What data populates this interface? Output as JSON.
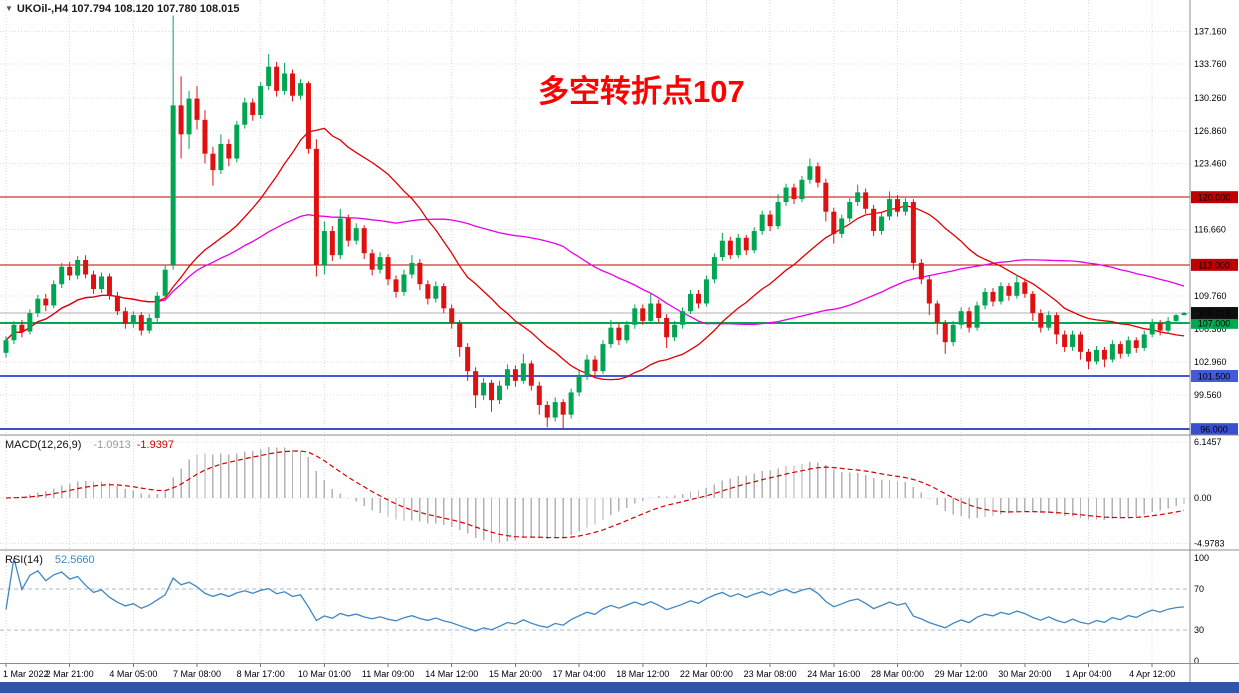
{
  "header": {
    "collapse_glyph": "▼",
    "symbol_title": "UKOil-,H4 107.794 108.120 107.780 108.015"
  },
  "annotation": {
    "text": "多空转折点107"
  },
  "colors": {
    "background": "#ffffff",
    "up_candle": "#00a551",
    "down_candle": "#e01010",
    "ma_fast": "#e00000",
    "ma_slow": "#e800e8",
    "grid": "#dcdcdc",
    "separator": "#8c8c8c",
    "current_price_line": "#b0b0b0",
    "macd_hist": "#b2b2b2",
    "macd_signal": "#d40000",
    "macd_value_color": "#9a9a9a",
    "rsi_line": "#3f87c4",
    "rsi_level": "#aab9d9",
    "annotation": "#ff0000",
    "taskbar": "#3056a8",
    "current_badge": "#101010"
  },
  "overlays": {
    "hlines": [
      {
        "price": 120.0,
        "label": "120.000",
        "color": "#c00000",
        "width": 1
      },
      {
        "price": 113.0,
        "label": "113.000",
        "color": "#c00000",
        "width": 1
      },
      {
        "price": 107.0,
        "label": "107.000",
        "color": "#00a84f",
        "width": 2
      },
      {
        "price": 101.5,
        "label": "101.500",
        "color": "#4459d8",
        "width": 2
      },
      {
        "price": 96.0,
        "label": "96.000",
        "color": "#3a4fd0",
        "width": 2
      }
    ],
    "current_price": {
      "value": 108.015,
      "label": "108.015"
    }
  },
  "chart_data": {
    "type": "candlestick",
    "symbol": "UKOil-",
    "timeframe": "H4",
    "ylim": [
      95.5,
      140.4
    ],
    "price_ticks": [
      {
        "v": 137.16,
        "label": "137.160"
      },
      {
        "v": 133.76,
        "label": "133.760"
      },
      {
        "v": 130.26,
        "label": "130.260"
      },
      {
        "v": 126.86,
        "label": "126.860"
      },
      {
        "v": 123.46,
        "label": "123.460"
      },
      {
        "v": 116.66,
        "label": "116.660"
      },
      {
        "v": 109.76,
        "label": "109.760"
      },
      {
        "v": 106.36,
        "label": "106.360"
      },
      {
        "v": 102.96,
        "label": "102.960"
      },
      {
        "v": 99.56,
        "label": "99.560"
      }
    ],
    "x_labels": [
      {
        "bar": 0,
        "label": "1 Mar 2022"
      },
      {
        "bar": 8,
        "label": "2 Mar 21:00"
      },
      {
        "bar": 16,
        "label": "4 Mar 05:00"
      },
      {
        "bar": 24,
        "label": "7 Mar 08:00"
      },
      {
        "bar": 32,
        "label": "8 Mar 17:00"
      },
      {
        "bar": 40,
        "label": "10 Mar 01:00"
      },
      {
        "bar": 48,
        "label": "11 Mar 09:00"
      },
      {
        "bar": 56,
        "label": "14 Mar 12:00"
      },
      {
        "bar": 64,
        "label": "15 Mar 20:00"
      },
      {
        "bar": 72,
        "label": "17 Mar 04:00"
      },
      {
        "bar": 80,
        "label": "18 Mar 12:00"
      },
      {
        "bar": 88,
        "label": "22 Mar 00:00"
      },
      {
        "bar": 96,
        "label": "23 Mar 08:00"
      },
      {
        "bar": 104,
        "label": "24 Mar 16:00"
      },
      {
        "bar": 112,
        "label": "28 Mar 00:00"
      },
      {
        "bar": 120,
        "label": "29 Mar 12:00"
      },
      {
        "bar": 128,
        "label": "30 Mar 20:00"
      },
      {
        "bar": 136,
        "label": "1 Apr 04:00"
      },
      {
        "bar": 144,
        "label": "4 Apr 12:00"
      }
    ],
    "indicators": {
      "ma_fast": {
        "type": "sma",
        "period": 20
      },
      "ma_slow": {
        "type": "sma",
        "period": 50
      },
      "macd": {
        "name": "MACD(12,26,9)",
        "main_value": "-1.0913",
        "signal_value": "-1.9397",
        "ylim": [
          -5.6,
          6.8
        ],
        "scale": [
          {
            "v": 6.1457,
            "label": "6.1457"
          },
          {
            "v": 0,
            "label": "0.00"
          },
          {
            "v": -4.9783,
            "label": "-4.9783"
          }
        ]
      },
      "rsi": {
        "name": "RSI(14)",
        "value": "52.5660",
        "period": 14,
        "ylim": [
          -2,
          107
        ],
        "levels": [
          70,
          30
        ],
        "scale": [
          {
            "v": 100,
            "label": "100"
          },
          {
            "v": 70,
            "label": "70"
          },
          {
            "v": 30,
            "label": "30"
          },
          {
            "v": 0,
            "label": "0"
          }
        ]
      }
    },
    "ohlc": [
      [
        103.9,
        105.6,
        103.4,
        105.2
      ],
      [
        105.2,
        107.2,
        104.8,
        106.8
      ],
      [
        106.8,
        107.3,
        105.5,
        106.1
      ],
      [
        106.1,
        108.4,
        105.8,
        108.0
      ],
      [
        108.0,
        109.9,
        107.6,
        109.5
      ],
      [
        109.5,
        110.0,
        108.2,
        108.8
      ],
      [
        108.8,
        111.4,
        108.5,
        111.0
      ],
      [
        111.0,
        113.2,
        110.6,
        112.8
      ],
      [
        112.8,
        113.3,
        111.4,
        111.9
      ],
      [
        111.9,
        113.9,
        111.5,
        113.5
      ],
      [
        113.5,
        114.0,
        111.6,
        112.0
      ],
      [
        112.0,
        112.4,
        110.0,
        110.5
      ],
      [
        110.5,
        112.2,
        110.1,
        111.8
      ],
      [
        111.8,
        112.1,
        109.4,
        109.8
      ],
      [
        109.8,
        110.2,
        107.8,
        108.2
      ],
      [
        108.2,
        108.6,
        106.4,
        106.9
      ],
      [
        106.9,
        108.2,
        106.5,
        107.8
      ],
      [
        107.8,
        108.1,
        105.7,
        106.2
      ],
      [
        106.2,
        107.9,
        105.9,
        107.5
      ],
      [
        107.5,
        110.2,
        107.1,
        109.8
      ],
      [
        109.8,
        112.9,
        109.4,
        112.5
      ],
      [
        113.0,
        138.8,
        112.5,
        129.5
      ],
      [
        129.5,
        132.5,
        124.0,
        126.5
      ],
      [
        126.5,
        131.0,
        125.0,
        130.2
      ],
      [
        130.2,
        131.5,
        127.0,
        128.0
      ],
      [
        128.0,
        129.0,
        123.5,
        124.5
      ],
      [
        124.5,
        125.2,
        121.2,
        122.8
      ],
      [
        122.8,
        126.5,
        122.4,
        125.5
      ],
      [
        125.5,
        126.0,
        123.2,
        124.0
      ],
      [
        124.0,
        127.9,
        123.6,
        127.5
      ],
      [
        127.5,
        130.3,
        127.1,
        129.8
      ],
      [
        129.8,
        130.2,
        127.9,
        128.5
      ],
      [
        128.5,
        131.9,
        128.1,
        131.5
      ],
      [
        131.5,
        134.8,
        131.1,
        133.5
      ],
      [
        133.5,
        134.0,
        130.4,
        131.0
      ],
      [
        131.0,
        133.9,
        130.6,
        132.8
      ],
      [
        132.8,
        133.2,
        129.9,
        130.5
      ],
      [
        130.5,
        132.2,
        130.1,
        131.8
      ],
      [
        131.8,
        132.0,
        124.5,
        125.0
      ],
      [
        125.0,
        126.0,
        111.8,
        113.0
      ],
      [
        113.0,
        117.5,
        112.0,
        116.5
      ],
      [
        116.5,
        117.0,
        113.4,
        114.0
      ],
      [
        114.0,
        118.8,
        113.6,
        117.8
      ],
      [
        117.8,
        118.2,
        114.9,
        115.5
      ],
      [
        115.5,
        117.3,
        115.1,
        116.8
      ],
      [
        116.8,
        117.1,
        113.6,
        114.2
      ],
      [
        114.2,
        114.6,
        111.9,
        112.5
      ],
      [
        112.5,
        114.3,
        112.1,
        113.8
      ],
      [
        113.8,
        114.1,
        110.9,
        111.5
      ],
      [
        111.5,
        111.9,
        109.6,
        110.2
      ],
      [
        110.2,
        112.5,
        109.8,
        112.0
      ],
      [
        112.0,
        114.0,
        111.6,
        113.2
      ],
      [
        113.2,
        113.6,
        110.4,
        111.0
      ],
      [
        111.0,
        111.4,
        108.9,
        109.5
      ],
      [
        109.5,
        111.3,
        109.1,
        110.8
      ],
      [
        110.8,
        111.1,
        108.0,
        108.5
      ],
      [
        108.5,
        108.9,
        106.4,
        107.0
      ],
      [
        107.0,
        107.3,
        103.5,
        104.5
      ],
      [
        104.5,
        104.9,
        101.0,
        102.0
      ],
      [
        102.0,
        102.4,
        98.2,
        99.5
      ],
      [
        99.5,
        101.3,
        99.0,
        100.8
      ],
      [
        100.8,
        101.1,
        97.8,
        99.0
      ],
      [
        99.0,
        101.0,
        98.6,
        100.5
      ],
      [
        100.5,
        102.7,
        100.1,
        102.2
      ],
      [
        102.2,
        102.6,
        100.4,
        101.0
      ],
      [
        101.0,
        103.8,
        100.7,
        102.8
      ],
      [
        102.8,
        103.1,
        100.0,
        100.5
      ],
      [
        100.5,
        100.9,
        97.5,
        98.5
      ],
      [
        98.5,
        98.9,
        96.2,
        97.2
      ],
      [
        97.2,
        99.3,
        96.8,
        98.8
      ],
      [
        98.8,
        99.1,
        96.0,
        97.5
      ],
      [
        97.5,
        100.2,
        97.1,
        99.8
      ],
      [
        99.8,
        102.0,
        99.4,
        101.5
      ],
      [
        101.5,
        103.7,
        101.1,
        103.2
      ],
      [
        103.2,
        103.6,
        101.4,
        102.0
      ],
      [
        102.0,
        105.2,
        101.7,
        104.8
      ],
      [
        104.8,
        107.3,
        104.4,
        106.5
      ],
      [
        106.5,
        106.9,
        104.7,
        105.2
      ],
      [
        105.2,
        107.2,
        104.9,
        106.8
      ],
      [
        106.8,
        108.9,
        106.4,
        108.5
      ],
      [
        108.5,
        108.9,
        106.8,
        107.2
      ],
      [
        107.2,
        110.0,
        106.9,
        109.0
      ],
      [
        109.0,
        109.4,
        107.0,
        107.5
      ],
      [
        107.5,
        107.9,
        104.4,
        105.5
      ],
      [
        105.5,
        107.2,
        105.1,
        106.8
      ],
      [
        106.8,
        108.6,
        106.4,
        108.2
      ],
      [
        108.2,
        110.4,
        107.9,
        110.0
      ],
      [
        110.0,
        110.4,
        108.5,
        109.0
      ],
      [
        109.0,
        111.9,
        108.7,
        111.5
      ],
      [
        111.5,
        114.2,
        111.1,
        113.8
      ],
      [
        113.8,
        116.3,
        113.4,
        115.5
      ],
      [
        115.5,
        115.9,
        113.6,
        114.0
      ],
      [
        114.0,
        116.2,
        113.7,
        115.8
      ],
      [
        115.8,
        116.1,
        114.0,
        114.5
      ],
      [
        114.5,
        116.9,
        114.2,
        116.5
      ],
      [
        116.5,
        118.6,
        116.1,
        118.2
      ],
      [
        118.2,
        118.6,
        116.5,
        117.0
      ],
      [
        117.0,
        120.3,
        116.7,
        119.5
      ],
      [
        119.5,
        121.4,
        119.1,
        121.0
      ],
      [
        121.0,
        121.4,
        119.3,
        119.8
      ],
      [
        119.8,
        122.2,
        119.5,
        121.8
      ],
      [
        121.8,
        124.0,
        121.4,
        123.2
      ],
      [
        123.2,
        123.6,
        121.0,
        121.5
      ],
      [
        121.5,
        121.9,
        117.5,
        118.5
      ],
      [
        118.5,
        118.9,
        115.2,
        116.2
      ],
      [
        116.2,
        118.2,
        115.8,
        117.8
      ],
      [
        117.8,
        119.9,
        117.4,
        119.5
      ],
      [
        119.5,
        121.3,
        119.1,
        120.5
      ],
      [
        120.5,
        120.9,
        118.3,
        118.8
      ],
      [
        118.8,
        119.2,
        116.0,
        116.5
      ],
      [
        116.5,
        118.4,
        116.1,
        118.0
      ],
      [
        118.0,
        120.6,
        117.6,
        119.8
      ],
      [
        119.8,
        120.2,
        118.0,
        118.5
      ],
      [
        118.5,
        119.9,
        118.1,
        119.5
      ],
      [
        119.5,
        119.8,
        112.5,
        113.2
      ],
      [
        113.2,
        113.6,
        111.0,
        111.5
      ],
      [
        111.5,
        111.9,
        107.8,
        109.0
      ],
      [
        109.0,
        109.3,
        105.8,
        107.0
      ],
      [
        107.0,
        107.3,
        103.8,
        105.0
      ],
      [
        105.0,
        107.2,
        104.6,
        106.8
      ],
      [
        106.8,
        108.6,
        106.4,
        108.2
      ],
      [
        108.2,
        108.6,
        106.0,
        106.5
      ],
      [
        106.5,
        109.2,
        106.2,
        108.8
      ],
      [
        108.8,
        110.6,
        108.4,
        110.2
      ],
      [
        110.2,
        110.6,
        108.7,
        109.2
      ],
      [
        109.2,
        111.2,
        108.9,
        110.8
      ],
      [
        110.8,
        111.1,
        109.3,
        109.8
      ],
      [
        109.8,
        112.0,
        109.5,
        111.2
      ],
      [
        111.2,
        111.6,
        109.6,
        110.0
      ],
      [
        110.0,
        110.3,
        107.2,
        108.0
      ],
      [
        108.0,
        108.4,
        106.0,
        106.5
      ],
      [
        106.5,
        108.2,
        106.2,
        107.8
      ],
      [
        107.8,
        108.1,
        104.8,
        105.8
      ],
      [
        105.8,
        106.2,
        104.0,
        104.5
      ],
      [
        104.5,
        106.2,
        104.1,
        105.8
      ],
      [
        105.8,
        106.1,
        103.2,
        104.0
      ],
      [
        104.0,
        104.3,
        102.2,
        103.0
      ],
      [
        103.0,
        104.6,
        102.7,
        104.2
      ],
      [
        104.2,
        104.5,
        102.4,
        103.2
      ],
      [
        103.2,
        105.2,
        102.9,
        104.8
      ],
      [
        104.8,
        105.1,
        103.3,
        103.8
      ],
      [
        103.8,
        105.6,
        103.5,
        105.2
      ],
      [
        105.2,
        105.5,
        103.9,
        104.4
      ],
      [
        104.4,
        106.2,
        104.1,
        105.8
      ],
      [
        105.8,
        107.4,
        105.5,
        107.0
      ],
      [
        107.0,
        107.3,
        105.7,
        106.2
      ],
      [
        106.2,
        107.6,
        105.9,
        107.2
      ],
      [
        107.2,
        107.9,
        106.9,
        107.794
      ],
      [
        107.794,
        108.12,
        107.78,
        108.015
      ]
    ]
  },
  "taskbar": {}
}
